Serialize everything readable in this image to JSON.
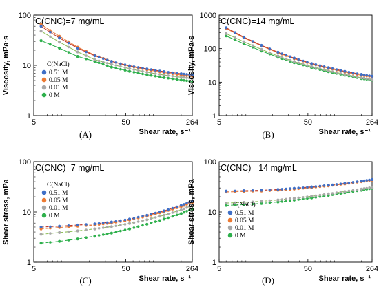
{
  "colors": {
    "0.51 M": "#3f6fc6",
    "0.05 M": "#ec7a32",
    "0.01 M": "#a8a8a8",
    "0 M": "#2eb04c",
    "0.51 M line": "#c0392b",
    "0.05 M line": "#e8783a",
    "0.01 M line": "#8fbf59",
    "0 M line": "#2eb04c"
  },
  "chart_data": [
    {
      "type": "scatter",
      "panel_label": "(A)",
      "title": "C(CNC)=7 mg/mL",
      "xlabel": "Shear rate, s⁻¹",
      "ylabel": "Viscosity, mPa·s",
      "xscale": "log",
      "yscale": "log",
      "xlim": [
        5,
        264
      ],
      "ylim": [
        1,
        100
      ],
      "xticks": [
        "5",
        "50",
        "264"
      ],
      "yticks": [
        "1",
        "10",
        "100"
      ],
      "legend_title": "C(NaCl)",
      "legend": [
        "0.51 M",
        "0.05 M",
        "0.01 M",
        "0 M"
      ],
      "legend_position": "left",
      "series": [
        {
          "name": "0.51 M",
          "x": [
            6,
            9.5,
            15,
            23,
            35,
            55,
            85,
            130,
            200,
            264
          ],
          "y": [
            60,
            35,
            22,
            15.5,
            12,
            9.8,
            8.5,
            7.5,
            6.8,
            6.5
          ]
        },
        {
          "name": "0.05 M",
          "x": [
            6,
            9.5,
            15,
            23,
            35,
            55,
            85,
            130,
            200,
            264
          ],
          "y": [
            65,
            38,
            23,
            16,
            12,
            9.6,
            8.2,
            7.2,
            6.4,
            6.1
          ]
        },
        {
          "name": "0.01 M",
          "x": [
            6,
            9.5,
            15,
            23,
            35,
            55,
            85,
            130,
            200,
            264
          ],
          "y": [
            48,
            29,
            18.5,
            13,
            10.5,
            8.6,
            7.3,
            6.4,
            5.8,
            5.5
          ]
        },
        {
          "name": "0 M",
          "x": [
            6,
            9.5,
            15,
            23,
            35,
            55,
            85,
            130,
            200,
            264
          ],
          "y": [
            31,
            22,
            15,
            12,
            9.2,
            7.6,
            6.5,
            5.7,
            5.1,
            4.8
          ]
        }
      ]
    },
    {
      "type": "scatter",
      "panel_label": "(B)",
      "title": "C(CNC)=14 mg/mL",
      "xlabel": "Shear rate, s⁻¹",
      "ylabel": "Viscosity, mPa·s",
      "xscale": "log",
      "yscale": "log",
      "xlim": [
        5,
        264
      ],
      "ylim": [
        1,
        1000
      ],
      "xticks": [
        "5",
        "50",
        "264"
      ],
      "yticks": [
        "1",
        "10",
        "100",
        "1000"
      ],
      "series": [
        {
          "name": "0.51 M",
          "x": [
            6,
            9.5,
            15,
            23,
            35,
            55,
            85,
            130,
            200,
            264
          ],
          "y": [
            420,
            220,
            125,
            78,
            52,
            36,
            27,
            21,
            17,
            15
          ]
        },
        {
          "name": "0.05 M",
          "x": [
            6,
            9.5,
            15,
            23,
            35,
            55,
            85,
            130,
            200,
            264
          ],
          "y": [
            400,
            210,
            120,
            75,
            50,
            35,
            26,
            20,
            16,
            14.5
          ]
        },
        {
          "name": "0.01 M",
          "x": [
            6,
            9.5,
            15,
            23,
            35,
            55,
            85,
            130,
            200,
            264
          ],
          "y": [
            280,
            160,
            95,
            60,
            41,
            29,
            22,
            17,
            13.5,
            12
          ]
        },
        {
          "name": "0 M",
          "x": [
            6,
            9.5,
            15,
            23,
            35,
            55,
            85,
            130,
            200,
            264
          ],
          "y": [
            240,
            140,
            85,
            55,
            38,
            27,
            20.5,
            16,
            12.8,
            11.5
          ]
        }
      ]
    },
    {
      "type": "scatter",
      "panel_label": "(C)",
      "title": "C(CNC)=7 mg/mL",
      "xlabel": "Shear rate, s⁻¹",
      "ylabel": "Shear stress, mPa",
      "xscale": "log",
      "yscale": "log",
      "xlim": [
        5,
        264
      ],
      "ylim": [
        1,
        100
      ],
      "xticks": [
        "5",
        "50",
        "264"
      ],
      "yticks": [
        "1",
        "10",
        "100"
      ],
      "legend_title": "C(NaCl)",
      "legend": [
        "0.51 M",
        "0.05 M",
        "0.01 M",
        "0 M"
      ],
      "legend_position": "left",
      "series": [
        {
          "name": "0.51 M",
          "x": [
            6,
            9.5,
            15,
            23,
            35,
            55,
            85,
            130,
            200,
            264
          ],
          "y": [
            5.0,
            5.2,
            5.5,
            5.8,
            6.3,
            7.2,
            8.6,
            10.5,
            13.5,
            16.5
          ]
        },
        {
          "name": "0.05 M",
          "x": [
            6,
            9.5,
            15,
            23,
            35,
            55,
            85,
            130,
            200,
            264
          ],
          "y": [
            4.6,
            4.9,
            5.2,
            5.5,
            6.0,
            6.9,
            8.2,
            10.0,
            12.8,
            15.5
          ]
        },
        {
          "name": "0.01 M",
          "x": [
            6,
            9.5,
            15,
            23,
            35,
            55,
            85,
            130,
            200,
            264
          ],
          "y": [
            3.6,
            3.9,
            4.2,
            4.6,
            5.1,
            5.9,
            7.0,
            8.6,
            11.0,
            13.5
          ]
        },
        {
          "name": "0 M",
          "x": [
            6,
            9.5,
            15,
            23,
            35,
            55,
            85,
            130,
            200,
            264
          ],
          "y": [
            2.4,
            2.6,
            2.9,
            3.3,
            3.8,
            4.6,
            5.7,
            7.2,
            9.3,
            11.5
          ]
        }
      ]
    },
    {
      "type": "scatter",
      "panel_label": "(D)",
      "title": "C(CNC) =14 mg/mL",
      "xlabel": "Shear rate, s⁻¹",
      "ylabel": "Shear stress, mPa",
      "xscale": "log",
      "yscale": "log",
      "xlim": [
        5,
        264
      ],
      "ylim": [
        1,
        100
      ],
      "xticks": [
        "5",
        "50",
        "264"
      ],
      "yticks": [
        "1",
        "10",
        "100"
      ],
      "legend_title": "C(NaCl)",
      "legend": [
        "0.51 M",
        "0.05 M",
        "0.01 M",
        "0 M"
      ],
      "legend_position": "left",
      "series": [
        {
          "name": "0.51 M",
          "x": [
            6,
            9.5,
            15,
            23,
            35,
            55,
            85,
            130,
            200,
            264
          ],
          "y": [
            26,
            26.5,
            27,
            28,
            29.5,
            31.5,
            34,
            37,
            41,
            44
          ]
        },
        {
          "name": "0.05 M",
          "x": [
            6,
            9.5,
            15,
            23,
            35,
            55,
            85,
            130,
            200,
            264
          ],
          "y": [
            25,
            25.5,
            26,
            27,
            28.5,
            30.5,
            33,
            36,
            40,
            43
          ]
        },
        {
          "name": "0.01 M",
          "x": [
            6,
            9.5,
            15,
            23,
            35,
            55,
            85,
            130,
            200,
            264
          ],
          "y": [
            15,
            15.5,
            16.3,
            17.3,
            18.7,
            20.5,
            22.8,
            25.5,
            28.5,
            31
          ]
        },
        {
          "name": "0 M",
          "x": [
            6,
            9.5,
            15,
            23,
            35,
            55,
            85,
            130,
            200,
            264
          ],
          "y": [
            13.5,
            14,
            14.8,
            15.8,
            17.2,
            19,
            21.3,
            24,
            27,
            29.5
          ]
        }
      ]
    }
  ]
}
